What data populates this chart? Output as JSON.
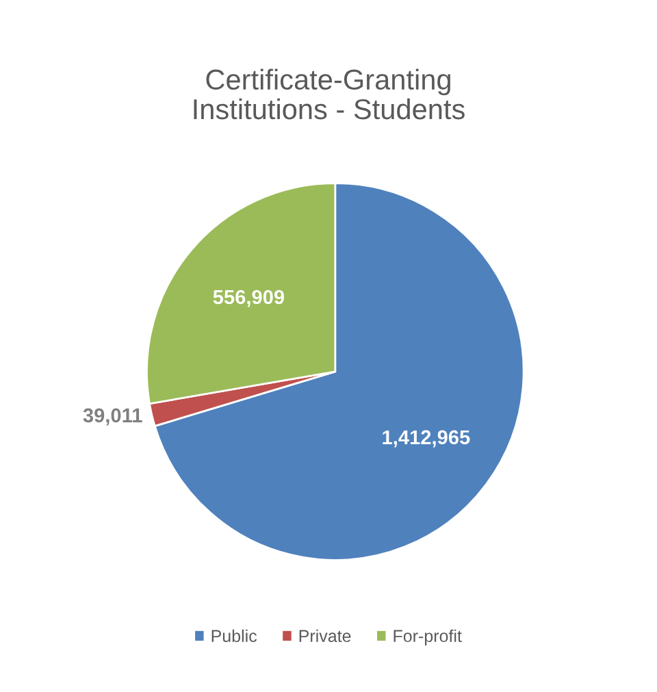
{
  "chart_data": {
    "type": "pie",
    "title": "Certificate-Granting\nInstitutions - Students",
    "categories": [
      "Public",
      "Private",
      "For-profit"
    ],
    "values": [
      1412965,
      39011,
      556909
    ],
    "colors": [
      "#4f81bd",
      "#c0504d",
      "#9bbb59"
    ],
    "value_labels": [
      "1,412,965",
      "39,011",
      "556,909"
    ],
    "legend": "bottom"
  }
}
